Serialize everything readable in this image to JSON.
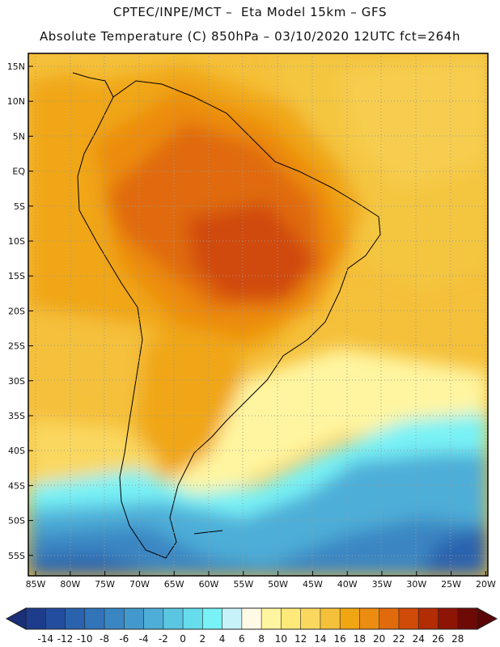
{
  "header": {
    "line1": "CPTEC/INPE/MCT –  Eta Model 15km – GFS",
    "line2": "Absolute Temperature (C) 850hPa – 03/10/2020 12UTC fct=264h"
  },
  "map": {
    "lat_labels": [
      "15N",
      "10N",
      "5N",
      "EQ",
      "5S",
      "10S",
      "15S",
      "20S",
      "25S",
      "30S",
      "35S",
      "40S",
      "45S",
      "50S",
      "55S"
    ],
    "lon_labels": [
      "85W",
      "80W",
      "75W",
      "70W",
      "65W",
      "60W",
      "55W",
      "50W",
      "45W",
      "40W",
      "35W",
      "30W",
      "25W",
      "20W"
    ]
  },
  "colorbar": {
    "labels": [
      "-14",
      "-12",
      "-10",
      "-8",
      "-6",
      "-4",
      "-2",
      "0",
      "2",
      "4",
      "6",
      "8",
      "10",
      "12",
      "14",
      "16",
      "18",
      "20",
      "22",
      "24",
      "26",
      "28"
    ],
    "colors": [
      "#1e3c8c",
      "#234d9e",
      "#2a62ae",
      "#3274b8",
      "#3a86c2",
      "#4499cc",
      "#4eaed8",
      "#5ac6e2",
      "#66dcec",
      "#78f2f6",
      "#c8f2fa",
      "#fffae6",
      "#fff5a0",
      "#ffe978",
      "#fad860",
      "#f5c03a",
      "#f0a612",
      "#ec8c10",
      "#e06a0c",
      "#d04a08",
      "#b22c04",
      "#8e1404",
      "#6e0a06"
    ]
  }
}
